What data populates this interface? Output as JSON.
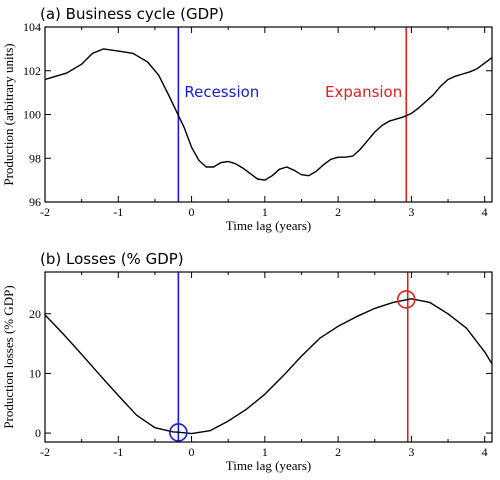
{
  "colors": {
    "recession": "#1a1adb",
    "expansion": "#e0201b",
    "line": "#000000"
  },
  "chart_data": [
    {
      "type": "line",
      "title": "(a) Business cycle (GDP)",
      "xlabel": "Time lag (years)",
      "ylabel": "Production (arbitrary units)",
      "xlim": [
        -2,
        4.1
      ],
      "ylim": [
        96,
        104
      ],
      "xticks": [
        -2,
        -1,
        0,
        1,
        2,
        3,
        4
      ],
      "xtick_labels": [
        "-2",
        "-1",
        "0",
        "1",
        "2",
        "3",
        "4"
      ],
      "yticks": [
        96,
        98,
        100,
        102,
        104
      ],
      "ytick_labels": [
        "96",
        "98",
        "100",
        "102",
        "104"
      ],
      "series": [
        {
          "x": [
            -2,
            -1.9,
            -1.7,
            -1.5,
            -1.35,
            -1.2,
            -1.0,
            -0.8,
            -0.6,
            -0.45,
            -0.3,
            -0.2,
            -0.1,
            0,
            0.1,
            0.2,
            0.3,
            0.4,
            0.5,
            0.6,
            0.7,
            0.8,
            0.9,
            1.0,
            1.1,
            1.2,
            1.3,
            1.4,
            1.5,
            1.6,
            1.7,
            1.8,
            1.9,
            2.0,
            2.1,
            2.2,
            2.3,
            2.4,
            2.5,
            2.6,
            2.7,
            2.8,
            2.9,
            3.0,
            3.1,
            3.2,
            3.3,
            3.4,
            3.5,
            3.6,
            3.7,
            3.8,
            3.9,
            4.0,
            4.1
          ],
          "y": [
            101.6,
            101.7,
            101.9,
            102.3,
            102.8,
            103.0,
            102.9,
            102.8,
            102.4,
            101.8,
            100.8,
            100.1,
            99.4,
            98.5,
            97.9,
            97.6,
            97.6,
            97.8,
            97.85,
            97.75,
            97.55,
            97.3,
            97.05,
            97.0,
            97.2,
            97.5,
            97.6,
            97.45,
            97.25,
            97.2,
            97.4,
            97.7,
            97.95,
            98.05,
            98.05,
            98.1,
            98.4,
            98.8,
            99.2,
            99.5,
            99.7,
            99.8,
            99.9,
            100.05,
            100.3,
            100.6,
            100.9,
            101.3,
            101.6,
            101.75,
            101.85,
            101.95,
            102.1,
            102.35,
            102.6
          ]
        }
      ],
      "vlines": [
        {
          "x": -0.18,
          "label": "Recession",
          "color": "#1a1adb"
        },
        {
          "x": 2.93,
          "label": "Expansion",
          "color": "#e0201b"
        }
      ]
    },
    {
      "type": "line",
      "title": "(b) Losses (% GDP)",
      "xlabel": "Time lag (years)",
      "ylabel": "Production losses (% GDP)",
      "xlim": [
        -2,
        4.1
      ],
      "ylim": [
        -1.5,
        27
      ],
      "xticks": [
        -2,
        -1,
        0,
        1,
        2,
        3,
        4
      ],
      "xtick_labels": [
        "-2",
        "-1",
        "0",
        "1",
        "2",
        "3",
        "4"
      ],
      "yticks": [
        0,
        10,
        20
      ],
      "ytick_labels": [
        "0",
        "10",
        "20"
      ],
      "series": [
        {
          "x": [
            -2,
            -1.75,
            -1.5,
            -1.25,
            -1.0,
            -0.75,
            -0.5,
            -0.25,
            -0.18,
            0,
            0.25,
            0.5,
            0.75,
            1.0,
            1.25,
            1.5,
            1.75,
            2.0,
            2.25,
            2.5,
            2.75,
            3.0,
            3.25,
            3.5,
            3.75,
            4.0,
            4.1
          ],
          "y": [
            19.8,
            16.6,
            13.2,
            9.7,
            6.3,
            3.0,
            0.9,
            0.2,
            0.15,
            -0.1,
            0.4,
            2.0,
            4.0,
            6.5,
            9.6,
            12.9,
            15.9,
            17.9,
            19.5,
            20.9,
            21.9,
            22.5,
            21.9,
            20.0,
            17.6,
            13.6,
            11.6
          ]
        }
      ],
      "vlines": [
        {
          "x": -0.18,
          "color": "#1a1adb"
        },
        {
          "x": 2.95,
          "color": "#e0201b"
        }
      ],
      "markers": [
        {
          "x": -0.18,
          "y": 0.1,
          "color": "#1a1adb"
        },
        {
          "x": 2.93,
          "y": 22.4,
          "color": "#e0201b"
        }
      ]
    }
  ]
}
